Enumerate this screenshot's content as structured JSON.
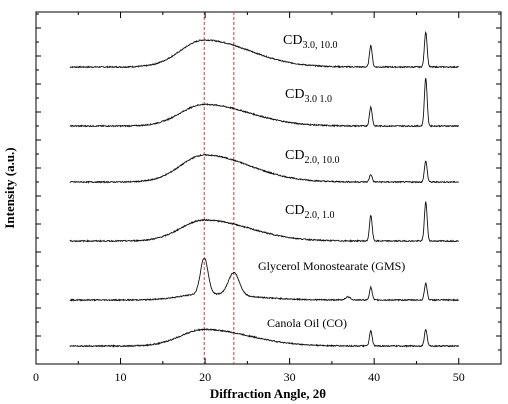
{
  "chart_data": {
    "type": "line",
    "title": "",
    "xlabel": "Diffraction Angle, 2θ",
    "ylabel": "Intensity (a.u.)",
    "xlim": [
      0,
      55
    ],
    "x_ticks": [
      0,
      10,
      20,
      30,
      40,
      50
    ],
    "y_tick_labels": "none",
    "grid": false,
    "legend": "none",
    "reference_lines": [
      {
        "x": 19.9,
        "style": "dashed",
        "color": "#d63a3a"
      },
      {
        "x": 23.4,
        "style": "dashed",
        "color": "#d63a3a"
      }
    ],
    "series": [
      {
        "name": "CD3.0, 10.0",
        "label": {
          "base": "CD",
          "sub": "3.0, 10.0"
        },
        "baseline": 0,
        "broad_peak": {
          "x": 19.9,
          "height": 0.9,
          "width": 2.8
        },
        "sharp_peaks": [
          {
            "x": 39.6,
            "height": 0.72
          },
          {
            "x": 46.1,
            "height": 1.17
          }
        ]
      },
      {
        "name": "CD3.0 1.0",
        "label": {
          "base": "CD",
          "sub": "3.0 1.0"
        },
        "baseline": 0,
        "broad_peak": {
          "x": 19.9,
          "height": 0.72,
          "width": 2.8
        },
        "sharp_peaks": [
          {
            "x": 39.6,
            "height": 0.63
          },
          {
            "x": 46.1,
            "height": 1.6
          }
        ]
      },
      {
        "name": "CD2.0, 10.0",
        "label": {
          "base": "CD",
          "sub": "2.0, 10.0"
        },
        "baseline": 0,
        "broad_peak": {
          "x": 19.9,
          "height": 0.9,
          "width": 2.8
        },
        "sharp_peaks": [
          {
            "x": 39.6,
            "height": 0.25
          },
          {
            "x": 46.1,
            "height": 0.7
          }
        ]
      },
      {
        "name": "CD2.0, 1.0",
        "label": {
          "base": "CD",
          "sub": "2.0, 1.0"
        },
        "baseline": 0,
        "broad_peak": {
          "x": 19.9,
          "height": 0.7,
          "width": 2.8
        },
        "sharp_peaks": [
          {
            "x": 39.6,
            "height": 0.85
          },
          {
            "x": 46.1,
            "height": 1.3
          }
        ]
      },
      {
        "name": "Glycerol Monostearate (GMS)",
        "label": {
          "base": "Glycerol Monostearate (GMS)",
          "sub": ""
        },
        "baseline": 0,
        "broad_peak": {
          "x": 19.9,
          "height": 0.2,
          "width": 2.8
        },
        "sharp_peaks": [
          {
            "x": 19.9,
            "height": 1.2,
            "width": 0.45
          },
          {
            "x": 23.4,
            "height": 0.75,
            "width": 0.65
          },
          {
            "x": 36.9,
            "height": 0.1,
            "width": 0.3
          },
          {
            "x": 39.6,
            "height": 0.42
          },
          {
            "x": 46.1,
            "height": 0.56
          }
        ]
      },
      {
        "name": "Canola Oil (CO)",
        "label": {
          "base": "Canola Oil (CO)",
          "sub": ""
        },
        "baseline": 0,
        "broad_peak": {
          "x": 19.9,
          "height": 0.55,
          "width": 2.8
        },
        "sharp_peaks": [
          {
            "x": 39.6,
            "height": 0.5
          },
          {
            "x": 46.1,
            "height": 0.55
          }
        ]
      }
    ]
  }
}
